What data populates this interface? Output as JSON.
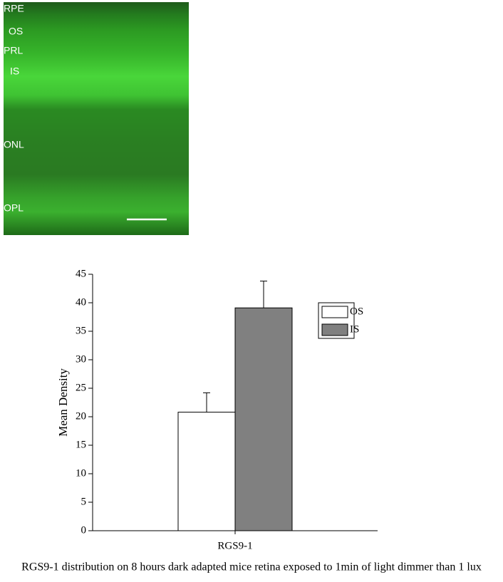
{
  "image": {
    "labels": [
      "RPE",
      "OS",
      "PRL",
      "IS",
      "ONL",
      "OPL"
    ]
  },
  "chart_data": {
    "type": "bar",
    "y_label": "Mean Density",
    "caption": "RGS9-1  distribution on  8 hours dark adapted mice retina exposed to 1min of light dimmer than 1 lux",
    "categories": [
      "RGS9-1"
    ],
    "series": [
      {
        "name": "OS",
        "color": "#ffffff",
        "values": [
          20.8
        ],
        "errors": [
          3.4
        ]
      },
      {
        "name": "IS",
        "color": "#808080",
        "values": [
          39.1
        ],
        "errors": [
          4.7
        ]
      }
    ],
    "ylim": [
      0,
      45
    ],
    "yticks": [
      0,
      5,
      10,
      15,
      20,
      25,
      30,
      35,
      40,
      45
    ],
    "legend": "upper right"
  }
}
